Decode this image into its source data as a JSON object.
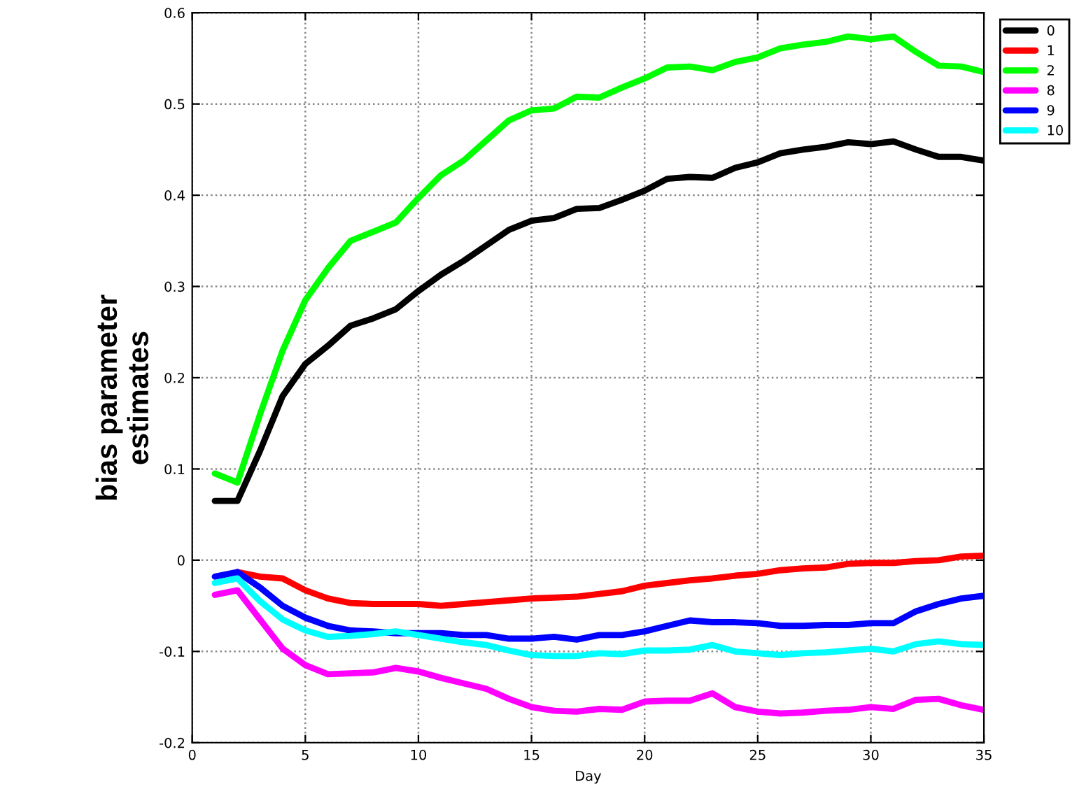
{
  "chart_data": {
    "type": "line",
    "xlabel": "Day",
    "ylabel": "bias parameter\nestimates",
    "x": [
      1,
      2,
      3,
      4,
      5,
      6,
      7,
      8,
      9,
      10,
      11,
      12,
      13,
      14,
      15,
      16,
      17,
      18,
      19,
      20,
      21,
      22,
      23,
      24,
      25,
      26,
      27,
      28,
      29,
      30,
      31,
      32,
      33,
      34,
      35
    ],
    "series": [
      {
        "name": "0",
        "color": "#000000",
        "values": [
          0.065,
          0.065,
          0.12,
          0.18,
          0.215,
          0.235,
          0.257,
          0.265,
          0.275,
          0.295,
          0.313,
          0.328,
          0.345,
          0.362,
          0.372,
          0.375,
          0.385,
          0.386,
          0.395,
          0.405,
          0.418,
          0.42,
          0.419,
          0.43,
          0.436,
          0.446,
          0.45,
          0.453,
          0.458,
          0.456,
          0.459,
          0.45,
          0.442,
          0.442,
          0.438
        ]
      },
      {
        "name": "1",
        "color": "#ff0000",
        "values": [
          null,
          -0.013,
          -0.018,
          -0.02,
          -0.033,
          -0.042,
          -0.047,
          -0.048,
          -0.048,
          -0.048,
          -0.05,
          -0.048,
          -0.046,
          -0.044,
          -0.042,
          -0.041,
          -0.04,
          -0.037,
          -0.034,
          -0.028,
          -0.025,
          -0.022,
          -0.02,
          -0.017,
          -0.015,
          -0.011,
          -0.009,
          -0.008,
          -0.004,
          -0.003,
          -0.003,
          -0.001,
          0.0,
          0.004,
          0.005
        ]
      },
      {
        "name": "2",
        "color": "#00ff00",
        "values": [
          0.095,
          0.085,
          0.16,
          0.23,
          0.285,
          0.32,
          0.35,
          0.36,
          0.37,
          0.397,
          0.422,
          0.438,
          0.46,
          0.482,
          0.493,
          0.495,
          0.508,
          0.507,
          0.518,
          0.528,
          0.54,
          0.541,
          0.537,
          0.546,
          0.551,
          0.561,
          0.565,
          0.568,
          0.574,
          0.571,
          0.574,
          0.557,
          0.542,
          0.541,
          0.535
        ]
      },
      {
        "name": "8",
        "color": "#ff00ff",
        "values": [
          -0.038,
          -0.033,
          -0.065,
          -0.097,
          -0.115,
          -0.125,
          -0.124,
          -0.123,
          -0.118,
          -0.122,
          -0.129,
          -0.135,
          -0.141,
          -0.152,
          -0.161,
          -0.165,
          -0.166,
          -0.163,
          -0.164,
          -0.155,
          -0.154,
          -0.154,
          -0.146,
          -0.161,
          -0.166,
          -0.168,
          -0.167,
          -0.165,
          -0.164,
          -0.161,
          -0.163,
          -0.153,
          -0.152,
          -0.159,
          -0.164
        ]
      },
      {
        "name": "9",
        "color": "#0000ff",
        "values": [
          -0.018,
          -0.013,
          -0.03,
          -0.05,
          -0.063,
          -0.072,
          -0.077,
          -0.078,
          -0.08,
          -0.08,
          -0.08,
          -0.082,
          -0.082,
          -0.086,
          -0.086,
          -0.084,
          -0.087,
          -0.082,
          -0.082,
          -0.078,
          -0.072,
          -0.066,
          -0.068,
          -0.068,
          -0.069,
          -0.072,
          -0.072,
          -0.071,
          -0.071,
          -0.069,
          -0.069,
          -0.056,
          -0.048,
          -0.042,
          -0.039
        ]
      },
      {
        "name": "10",
        "color": "#00ffff",
        "values": [
          -0.025,
          -0.02,
          -0.045,
          -0.065,
          -0.077,
          -0.084,
          -0.083,
          -0.081,
          -0.078,
          -0.082,
          -0.086,
          -0.09,
          -0.093,
          -0.099,
          -0.104,
          -0.105,
          -0.105,
          -0.102,
          -0.103,
          -0.099,
          -0.099,
          -0.098,
          -0.093,
          -0.1,
          -0.102,
          -0.104,
          -0.102,
          -0.101,
          -0.099,
          -0.097,
          -0.1,
          -0.092,
          -0.089,
          -0.092,
          -0.093
        ]
      }
    ],
    "xlim": [
      0,
      35
    ],
    "xticks": [
      0,
      5,
      10,
      15,
      20,
      25,
      30,
      35
    ],
    "ylim": [
      -0.2,
      0.6
    ],
    "yticks": [
      -0.2,
      -0.1,
      0,
      0.1,
      0.2,
      0.3,
      0.4,
      0.5,
      0.6
    ],
    "grid": true,
    "legend": "top right",
    "line_style": "solid",
    "marker": "none"
  }
}
